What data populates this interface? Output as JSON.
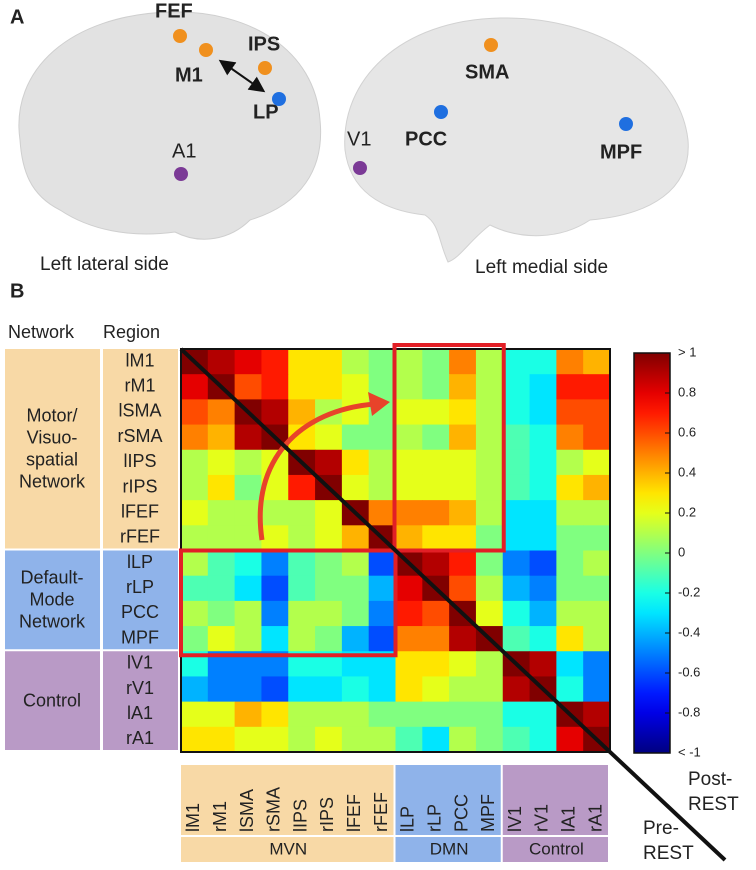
{
  "panel_labels": [
    "A",
    "B"
  ],
  "brain": {
    "lateral_caption": "Left lateral side",
    "medial_caption": "Left medial side",
    "regions": [
      {
        "name": "FEF",
        "color": "#f0901e"
      },
      {
        "name": "M1",
        "color": "#f0901e"
      },
      {
        "name": "IPS",
        "color": "#f0901e"
      },
      {
        "name": "LP",
        "color": "#1f6fe0"
      },
      {
        "name": "A1",
        "color": "#7b3a96"
      },
      {
        "name": "SMA",
        "color": "#f0901e"
      },
      {
        "name": "V1",
        "color": "#7b3a96"
      },
      {
        "name": "PCC",
        "color": "#1f6fe0"
      },
      {
        "name": "MPF",
        "color": "#1f6fe0"
      }
    ]
  },
  "chart_data": {
    "type": "heatmap",
    "header": [
      "Network",
      "Region"
    ],
    "networks": [
      {
        "name_lines": [
          "Motor/",
          "Visuo-",
          "spatial",
          "Network"
        ],
        "abbr": "MVN",
        "size": 8,
        "color": "#f8d9a6"
      },
      {
        "name_lines": [
          "Default-",
          "Mode",
          "Network"
        ],
        "abbr": "DMN",
        "size": 4,
        "color": "#8fb3ea"
      },
      {
        "name_lines": [
          "Control"
        ],
        "abbr": "Control",
        "size": 4,
        "color": "#b99ac6"
      }
    ],
    "categories": [
      "lM1",
      "rM1",
      "lSMA",
      "rSMA",
      "lIPS",
      "rIPS",
      "lFEF",
      "rFEF",
      "lLP",
      "rLP",
      "PCC",
      "MPF",
      "lV1",
      "rV1",
      "lA1",
      "rA1"
    ],
    "values": [
      [
        1,
        0.9,
        0.8,
        0.7,
        0.3,
        0.3,
        0.1,
        0.0,
        0.1,
        0.0,
        0.5,
        0.1,
        -0.2,
        -0.2,
        0.5,
        0.4
      ],
      [
        0.8,
        1,
        0.6,
        0.7,
        0.3,
        0.3,
        0.2,
        0.0,
        0.1,
        0.0,
        0.4,
        0.1,
        -0.2,
        -0.3,
        0.7,
        0.7
      ],
      [
        0.6,
        0.5,
        1,
        0.9,
        0.4,
        0.1,
        0.2,
        0.0,
        0.2,
        0.2,
        0.3,
        0.1,
        -0.2,
        -0.3,
        0.6,
        0.6
      ],
      [
        0.5,
        0.4,
        0.9,
        1,
        0.3,
        0.2,
        0.0,
        0.0,
        0.1,
        0.0,
        0.4,
        0.1,
        -0.1,
        -0.2,
        0.5,
        0.6
      ],
      [
        0.1,
        0.2,
        0.1,
        0.2,
        1,
        0.9,
        0.3,
        0.1,
        0.2,
        0.2,
        0.2,
        0.1,
        -0.1,
        -0.2,
        0.1,
        0.2
      ],
      [
        0.1,
        0.3,
        0.0,
        0.2,
        0.7,
        1,
        0.2,
        0.1,
        0.2,
        0.2,
        0.2,
        0.1,
        -0.1,
        -0.2,
        0.3,
        0.4
      ],
      [
        0.2,
        0.1,
        0.1,
        0.1,
        0.1,
        0.2,
        1,
        0.5,
        0.5,
        0.5,
        0.4,
        0.1,
        -0.3,
        -0.3,
        0.1,
        0.1
      ],
      [
        0.1,
        0.1,
        0.1,
        0.2,
        0.1,
        0.2,
        0.4,
        1,
        0.4,
        0.3,
        0.3,
        0.0,
        -0.3,
        -0.3,
        0.0,
        0.0
      ],
      [
        0.1,
        -0.1,
        -0.2,
        -0.5,
        -0.1,
        0.0,
        0.1,
        -0.6,
        1,
        0.9,
        0.7,
        0.0,
        -0.5,
        -0.6,
        0.0,
        0.1
      ],
      [
        -0.1,
        -0.1,
        -0.3,
        -0.6,
        -0.1,
        0.0,
        0.0,
        -0.4,
        0.8,
        1,
        0.6,
        0.1,
        -0.4,
        -0.5,
        0.0,
        0.0
      ],
      [
        0.1,
        0.0,
        0.1,
        -0.5,
        0.1,
        0.1,
        0.0,
        -0.5,
        0.7,
        0.6,
        1,
        0.2,
        -0.2,
        -0.4,
        0.1,
        0.1
      ],
      [
        0.0,
        0.2,
        0.1,
        -0.3,
        0.1,
        0.0,
        -0.4,
        -0.6,
        0.5,
        0.5,
        0.9,
        1,
        -0.1,
        -0.2,
        0.3,
        0.1
      ],
      [
        -0.2,
        -0.5,
        -0.5,
        -0.5,
        -0.2,
        -0.2,
        -0.3,
        -0.3,
        0.3,
        0.3,
        0.2,
        0.1,
        1,
        0.9,
        -0.3,
        -0.5
      ],
      [
        -0.4,
        -0.5,
        -0.5,
        -0.6,
        -0.3,
        -0.3,
        -0.2,
        -0.3,
        0.3,
        0.2,
        0.1,
        0.1,
        0.9,
        1,
        -0.2,
        -0.5
      ],
      [
        0.2,
        0.2,
        0.4,
        0.3,
        0.1,
        0.1,
        0.1,
        0.0,
        0.0,
        0.0,
        0.0,
        0.0,
        -0.2,
        -0.2,
        1,
        0.9
      ],
      [
        0.3,
        0.3,
        0.2,
        0.2,
        0.1,
        0.2,
        0.1,
        0.1,
        -0.1,
        -0.3,
        0.1,
        0.0,
        -0.1,
        -0.2,
        0.8,
        1
      ]
    ],
    "upper_label_lines": [
      "Post-",
      "REST"
    ],
    "lower_label_lines": [
      "Pre-",
      "REST"
    ],
    "zlim": [
      -1,
      1
    ],
    "zticks": [
      {
        "value": 1,
        "label": "> 1"
      },
      0.8,
      0.6,
      0.4,
      0.2,
      0,
      -0.2,
      -0.4,
      -0.6,
      -0.8,
      {
        "value": -1,
        "label": "< -1"
      }
    ]
  }
}
